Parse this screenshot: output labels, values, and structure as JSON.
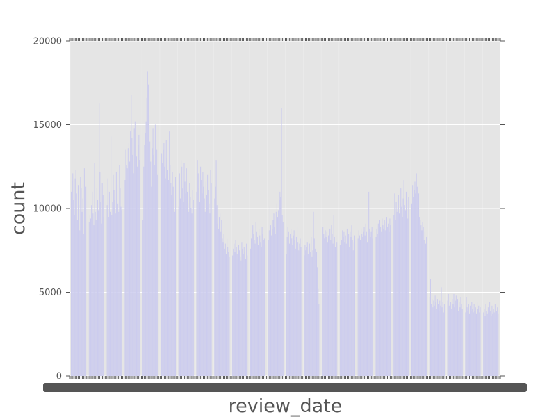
{
  "chart_data": {
    "type": "bar",
    "title": "",
    "xlabel": "review_date",
    "ylabel": "count",
    "ylim": [
      0,
      20000
    ],
    "yticks": [
      {
        "value": 0,
        "label": "0"
      },
      {
        "value": 5000,
        "label": "5000"
      },
      {
        "value": 10000,
        "label": "10000"
      },
      {
        "value": 15000,
        "label": "15000"
      },
      {
        "value": 20000,
        "label": "20000"
      }
    ],
    "grid": true,
    "legend": "none",
    "bar_color": "#ccccee",
    "background_color": "#e5e5e5",
    "x_tick_labels_note": "dense overlapping date labels (illegible)",
    "groups": [
      {
        "values": [
          11000,
          11600,
          12100,
          10500,
          9600,
          11800,
          12300,
          10900,
          9300,
          11400,
          10200,
          8700,
          11900,
          11200,
          9800,
          10600,
          8500,
          12400,
          12000,
          11300
        ]
      },
      {
        "values": [
          9200,
          9600,
          9400,
          10200,
          11000,
          9700,
          9000,
          12700,
          9800,
          9300,
          11200,
          10500,
          9900,
          16300,
          12200,
          10400,
          9100,
          11500,
          10800,
          9500
        ]
      },
      {
        "values": [
          10200,
          11800,
          9500,
          11000,
          9800,
          14300,
          9600,
          10400,
          12000,
          11100,
          10500,
          9700,
          12200,
          11400,
          10300,
          9800,
          12600,
          11200,
          10100,
          9900
        ]
      },
      {
        "values": [
          11700,
          13500,
          12600,
          12400,
          13600,
          13900,
          12800,
          14600,
          16800,
          14200,
          13200,
          12100,
          14800,
          15200,
          14000,
          13100,
          12500,
          13800,
          14400,
          12900
        ]
      },
      {
        "values": [
          9300,
          12500,
          13800,
          14500,
          15200,
          16600,
          18200,
          17400,
          15600,
          14000,
          12800,
          11300,
          13600,
          14800,
          13200,
          12600,
          15000,
          14100,
          13500,
          12000
        ]
      },
      {
        "values": [
          11400,
          13300,
          12700,
          13500,
          13900,
          12500,
          11800,
          14100,
          13000,
          12300,
          11700,
          14600,
          12600,
          11500,
          10800,
          12200,
          11300,
          10600,
          9800,
          11900
        ]
      },
      {
        "values": [
          10100,
          12100,
          10600,
          12900,
          12500,
          11200,
          10400,
          12700,
          11600,
          10900,
          12400,
          11000,
          10300,
          9800,
          11500,
          10700,
          10000,
          9700,
          11100,
          10500
        ]
      },
      {
        "values": [
          11000,
          12900,
          12100,
          11200,
          10400,
          12500,
          11700,
          10900,
          12200,
          11300,
          10600,
          9800,
          11600,
          10800,
          12000,
          11100,
          10300,
          9700,
          12300,
          11500
        ]
      },
      {
        "values": [
          10600,
          11300,
          12900,
          10200,
          9100,
          8800,
          9500,
          9700,
          8600,
          9300,
          8200,
          8000,
          8500,
          7600,
          7900,
          7300,
          8200,
          7700,
          7400,
          7100
        ]
      },
      {
        "values": [
          7200,
          7600,
          7900,
          7400,
          8100,
          7700,
          7300,
          7000,
          7800,
          7500,
          7100,
          6900,
          8000,
          7600,
          7300,
          7700,
          7400,
          7000,
          7900,
          7200
        ]
      },
      {
        "values": [
          7600,
          8200,
          8700,
          9000,
          8500,
          8100,
          7900,
          9200,
          8600,
          8300,
          7800,
          8800,
          8400,
          8000,
          7700,
          8900,
          8500,
          8100,
          8200,
          7800
        ]
      },
      {
        "values": [
          8100,
          8700,
          10100,
          9000,
          8400,
          8800,
          9300,
          9700,
          8900,
          8500,
          9800,
          10300,
          9500,
          9900,
          10500,
          11000,
          10700,
          16000,
          9600,
          9200
        ]
      },
      {
        "values": [
          7300,
          8300,
          8900,
          8600,
          7900,
          8500,
          8800,
          8200,
          7800,
          8400,
          8700,
          8100,
          7600,
          8300,
          8900,
          8000,
          7500,
          7900,
          8200,
          7700
        ]
      },
      {
        "values": [
          7200,
          7800,
          7500,
          7700,
          8000,
          7300,
          7600,
          7900,
          7400,
          8300,
          7100,
          7500,
          9800,
          8200,
          7600,
          7000,
          7400,
          6500,
          5200,
          4300
        ]
      },
      {
        "values": [
          7900,
          8900,
          8500,
          8200,
          8700,
          8300,
          8600,
          8000,
          8400,
          7800,
          8800,
          8100,
          9000,
          8500,
          7900,
          9600,
          8300,
          7700,
          8400,
          8000
        ]
      },
      {
        "values": [
          7800,
          8500,
          8100,
          8700,
          8300,
          8600,
          8000,
          8400,
          7900,
          8800,
          8200,
          8500,
          7700,
          8600,
          8300,
          9000,
          8100,
          7500,
          8000,
          8400
        ]
      },
      {
        "values": [
          8200,
          8700,
          8400,
          8100,
          8800,
          8500,
          8300,
          8600,
          8900,
          8400,
          9100,
          8600,
          8000,
          8700,
          11000,
          8800,
          8300,
          8600,
          8900,
          8200
        ]
      },
      {
        "values": [
          8300,
          8800,
          8500,
          9100,
          8700,
          9300,
          8900,
          8600,
          9400,
          9000,
          8800,
          9300,
          8700,
          9200,
          9500,
          8900,
          9100,
          8600,
          9400,
          9000
        ]
      },
      {
        "values": [
          9600,
          10900,
          9300,
          10400,
          9800,
          10000,
          10800,
          9700,
          10300,
          11200,
          10100,
          9500,
          10600,
          11700,
          10200,
          9900,
          11000,
          10500,
          9400,
          10700
        ]
      },
      {
        "values": [
          10300,
          11400,
          10700,
          11100,
          11600,
          10900,
          12100,
          11300,
          10500,
          10900,
          9500,
          9300,
          9000,
          8700,
          9200,
          8900,
          8100,
          8600,
          7900,
          8300
        ]
      },
      {
        "values": [
          4700,
          5800,
          4300,
          4600,
          4100,
          4500,
          4200,
          4800,
          4400,
          4000,
          4600,
          4300,
          3900,
          4500,
          4200,
          5300,
          4100,
          4400,
          3800,
          4300
        ]
      },
      {
        "values": [
          4500,
          4900,
          4200,
          4700,
          4400,
          4000,
          4600,
          4300,
          4900,
          4100,
          4500,
          4800,
          4200,
          4600,
          3900,
          4400,
          4100,
          4700,
          4300,
          4000
        ]
      },
      {
        "values": [
          3800,
          4700,
          4100,
          3900,
          4300,
          3700,
          4200,
          3900,
          4400,
          4000,
          3800,
          4300,
          3900,
          4100,
          3700,
          4400,
          4000,
          4200,
          3800,
          4100
        ]
      },
      {
        "values": [
          3800,
          4000,
          3600,
          4300,
          3900,
          3700,
          4100,
          3800,
          4400,
          3900,
          3600,
          4200,
          3700,
          4000,
          3800,
          4300,
          3500,
          3900,
          4100,
          3700
        ]
      }
    ]
  }
}
